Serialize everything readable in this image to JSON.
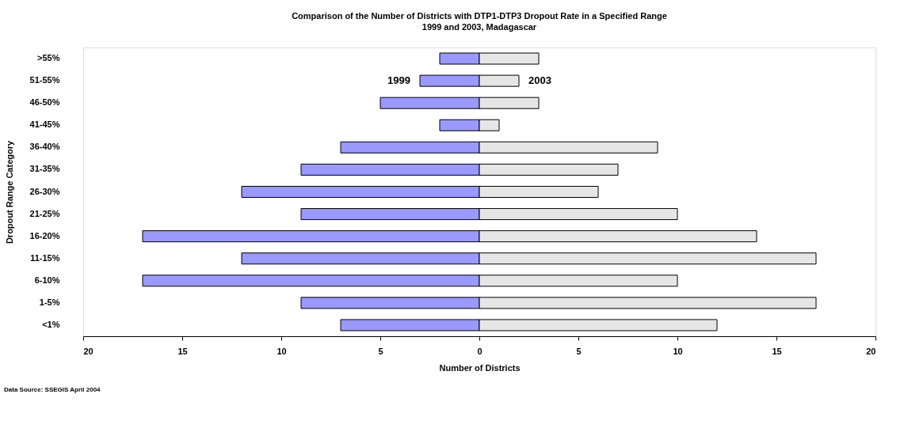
{
  "chart_data": {
    "type": "bar",
    "orientation": "horizontal",
    "stacked": true,
    "title": "Comparison of the Number of Districts with DTP1-DTP3 Dropout Rate in a Specified Range",
    "subtitle": "1999 and 2003, Madagascar",
    "xlabel": "Number of Districts",
    "ylabel": "Dropout Range Category",
    "categories": [
      ">55%",
      "51-55%",
      "46-50%",
      "41-45%",
      "36-40%",
      "31-35%",
      "26-30%",
      "21-25%",
      "16-20%",
      "11-15%",
      "6-10%",
      "1-5%",
      "<1%"
    ],
    "series": [
      {
        "name": "1999",
        "color": "#9999ff",
        "values": [
          -2,
          -3,
          -5,
          -2,
          -7,
          -9,
          -12,
          -9,
          -17,
          -12,
          -17,
          -9,
          -7
        ]
      },
      {
        "name": "2003",
        "color": "#e6e6e6",
        "values": [
          3,
          2,
          3,
          1,
          9,
          7,
          6,
          10,
          14,
          17,
          10,
          17,
          12
        ]
      }
    ],
    "xlim": [
      -20,
      20
    ],
    "xticks": [
      {
        "value": -20,
        "label": "20"
      },
      {
        "value": -15,
        "label": "15"
      },
      {
        "value": -10,
        "label": "10"
      },
      {
        "value": -5,
        "label": "5"
      },
      0,
      5,
      10,
      15,
      20
    ],
    "grid": false,
    "legend": false,
    "annotations": [
      "Data Source: SSEGIS April 2004"
    ]
  }
}
